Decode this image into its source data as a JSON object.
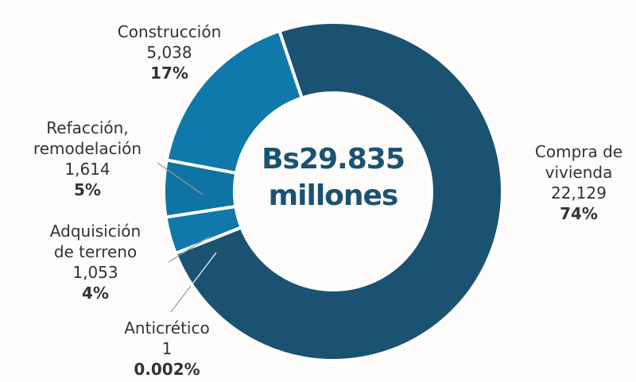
{
  "chart_data": {
    "type": "donut",
    "center_label": "Bs29.835 millones",
    "categories": [
      "Compra de vivienda",
      "Anticrético",
      "Adquisición de terreno",
      "Refacción, remodelación",
      "Construcción"
    ],
    "values": [
      22129,
      1,
      1053,
      1614,
      5038
    ],
    "value_labels": [
      "22,129",
      "1",
      "1,053",
      "1,614",
      "5,038"
    ],
    "percent_labels": [
      "74%",
      "0.002%",
      "4%",
      "5%",
      "17%"
    ],
    "colors": [
      "#1b5272",
      "#0f79ab",
      "#0f79ab",
      "#0f74a3",
      "#0f79ab"
    ]
  }
}
